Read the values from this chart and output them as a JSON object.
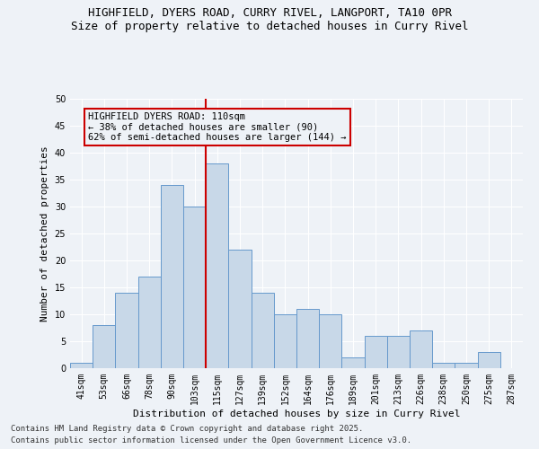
{
  "title_line1": "HIGHFIELD, DYERS ROAD, CURRY RIVEL, LANGPORT, TA10 0PR",
  "title_line2": "Size of property relative to detached houses in Curry Rivel",
  "xlabel": "Distribution of detached houses by size in Curry Rivel",
  "ylabel": "Number of detached properties",
  "footer_line1": "Contains HM Land Registry data © Crown copyright and database right 2025.",
  "footer_line2": "Contains public sector information licensed under the Open Government Licence v3.0.",
  "bar_labels": [
    "41sqm",
    "53sqm",
    "66sqm",
    "78sqm",
    "90sqm",
    "103sqm",
    "115sqm",
    "127sqm",
    "139sqm",
    "152sqm",
    "164sqm",
    "176sqm",
    "189sqm",
    "201sqm",
    "213sqm",
    "226sqm",
    "238sqm",
    "250sqm",
    "275sqm",
    "287sqm"
  ],
  "bar_values": [
    1,
    8,
    14,
    17,
    34,
    30,
    38,
    22,
    14,
    10,
    11,
    10,
    2,
    6,
    6,
    7,
    1,
    1,
    3,
    0
  ],
  "bar_color": "#c8d8e8",
  "bar_edge_color": "#6699cc",
  "vline_x": 5.5,
  "vline_color": "#cc0000",
  "annotation_box_text": "HIGHFIELD DYERS ROAD: 110sqm\n← 38% of detached houses are smaller (90)\n62% of semi-detached houses are larger (144) →",
  "annotation_box_color": "#cc0000",
  "ylim": [
    0,
    50
  ],
  "yticks": [
    0,
    5,
    10,
    15,
    20,
    25,
    30,
    35,
    40,
    45,
    50
  ],
  "background_color": "#eef2f7",
  "grid_color": "#ffffff",
  "title_fontsize": 9,
  "subtitle_fontsize": 9,
  "axis_label_fontsize": 8,
  "tick_fontsize": 7,
  "annotation_fontsize": 7.5,
  "footer_fontsize": 6.5
}
